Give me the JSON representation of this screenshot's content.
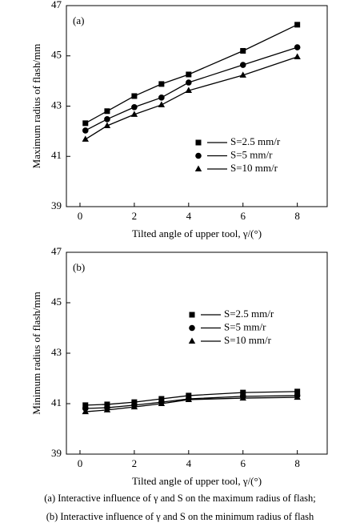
{
  "chart_data": [
    {
      "type": "line",
      "panel_label": "(a)",
      "x_label": "Tilted angle of upper tool, γ/(°)",
      "y_label": "Maximum radius of flash/mm",
      "x": [
        0.2,
        1,
        2,
        3,
        4,
        6,
        8
      ],
      "series": [
        {
          "name": "S=2.5 mm/r",
          "color": "#000000",
          "marker": "square",
          "values": [
            42.32,
            42.8,
            43.4,
            43.88,
            44.26,
            45.2,
            46.24
          ]
        },
        {
          "name": "S=5 mm/r",
          "color": "#000000",
          "marker": "circle",
          "values": [
            42.03,
            42.48,
            42.96,
            43.34,
            43.94,
            44.64,
            45.34
          ]
        },
        {
          "name": "S=10 mm/r",
          "color": "#000000",
          "marker": "triangle",
          "values": [
            41.68,
            42.22,
            42.67,
            43.05,
            43.62,
            44.23,
            44.96
          ]
        }
      ],
      "xlim": [
        -0.5,
        9.1
      ],
      "xticks": [
        0,
        2,
        4,
        6,
        8
      ],
      "ylim": [
        39,
        47
      ],
      "yticks": [
        39,
        41,
        43,
        45,
        47
      ]
    },
    {
      "type": "line",
      "panel_label": "(b)",
      "x_label": "Tilted angle of upper tool, γ/(°)",
      "y_label": "Minimum radius of flash/mm",
      "x": [
        0.2,
        1,
        2,
        3,
        4,
        6,
        8
      ],
      "series": [
        {
          "name": "S=2.5 mm/r",
          "color": "#000000",
          "marker": "square",
          "values": [
            40.94,
            40.97,
            41.06,
            41.19,
            41.32,
            41.44,
            41.48
          ]
        },
        {
          "name": "S=5 mm/r",
          "color": "#000000",
          "marker": "circle",
          "values": [
            40.81,
            40.84,
            40.94,
            41.06,
            41.19,
            41.29,
            41.32
          ]
        },
        {
          "name": "S=10 mm/r",
          "color": "#000000",
          "marker": "triangle",
          "values": [
            40.68,
            40.75,
            40.87,
            41.0,
            41.16,
            41.22,
            41.25
          ]
        }
      ],
      "xlim": [
        -0.5,
        9.1
      ],
      "xticks": [
        0,
        2,
        4,
        6,
        8
      ],
      "ylim": [
        39,
        47
      ],
      "yticks": [
        39,
        41,
        43,
        45,
        47
      ]
    }
  ],
  "caption": [
    "(a)  Interactive  influence  of  γ  and  S  on  the  maximum radius of flash;",
    "(b) Interactive influence of γ and S on the minimum radius of flash"
  ]
}
